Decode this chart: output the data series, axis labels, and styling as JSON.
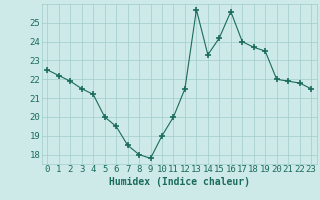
{
  "x": [
    0,
    1,
    2,
    3,
    4,
    5,
    6,
    7,
    8,
    9,
    10,
    11,
    12,
    13,
    14,
    15,
    16,
    17,
    18,
    19,
    20,
    21,
    22,
    23
  ],
  "y": [
    22.5,
    22.2,
    21.9,
    21.5,
    21.2,
    20.0,
    19.5,
    18.5,
    18.0,
    17.8,
    19.0,
    20.0,
    21.5,
    25.7,
    23.3,
    24.2,
    25.6,
    24.0,
    23.7,
    23.5,
    22.0,
    21.9,
    21.8,
    21.5
  ],
  "xlabel": "Humidex (Indice chaleur)",
  "ylim": [
    17.5,
    26.0
  ],
  "xlim": [
    -0.5,
    23.5
  ],
  "yticks": [
    18,
    19,
    20,
    21,
    22,
    23,
    24,
    25
  ],
  "xticks": [
    0,
    1,
    2,
    3,
    4,
    5,
    6,
    7,
    8,
    9,
    10,
    11,
    12,
    13,
    14,
    15,
    16,
    17,
    18,
    19,
    20,
    21,
    22,
    23
  ],
  "line_color": "#1a6b5a",
  "marker": "+",
  "bg_color": "#ceeae8",
  "grid_color": "#a0ccc8",
  "axis_label_fontsize": 7,
  "tick_fontsize": 6.5
}
